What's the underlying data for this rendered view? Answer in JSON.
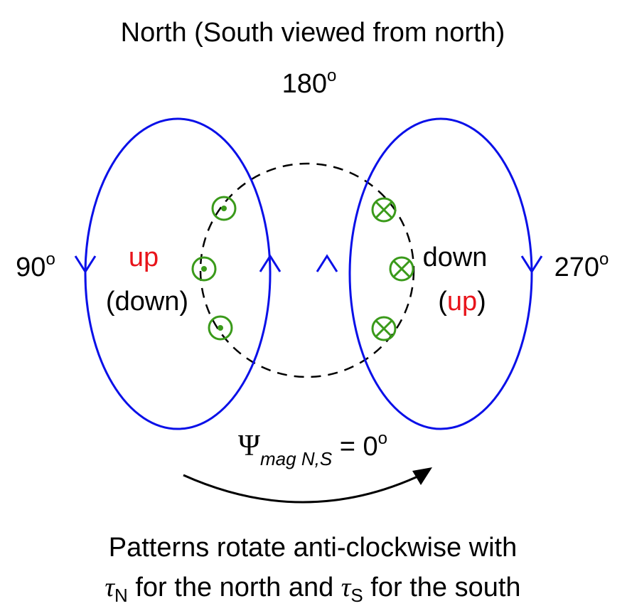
{
  "title": "North (South viewed from north)",
  "angles": {
    "top": {
      "value": "180",
      "sup": "o"
    },
    "left": {
      "value": "90",
      "sup": "o"
    },
    "right": {
      "value": "270",
      "sup": "o"
    }
  },
  "left_lobe": {
    "primary": "up",
    "secondary": "(down)"
  },
  "right_lobe": {
    "primary": "down",
    "secondary": [
      "(",
      "up",
      ")"
    ]
  },
  "formula": {
    "symbol": "Ψ",
    "sub": "mag N,S",
    "rest": " = 0",
    "sup": "o"
  },
  "caption": {
    "line1": "Patterns rotate anti-clockwise with",
    "line2": [
      {
        "text": "τ",
        "sub": "N"
      },
      {
        "text": " for the north and "
      },
      {
        "text": "τ",
        "sub": "S"
      },
      {
        "text": " for the south"
      }
    ]
  }
}
